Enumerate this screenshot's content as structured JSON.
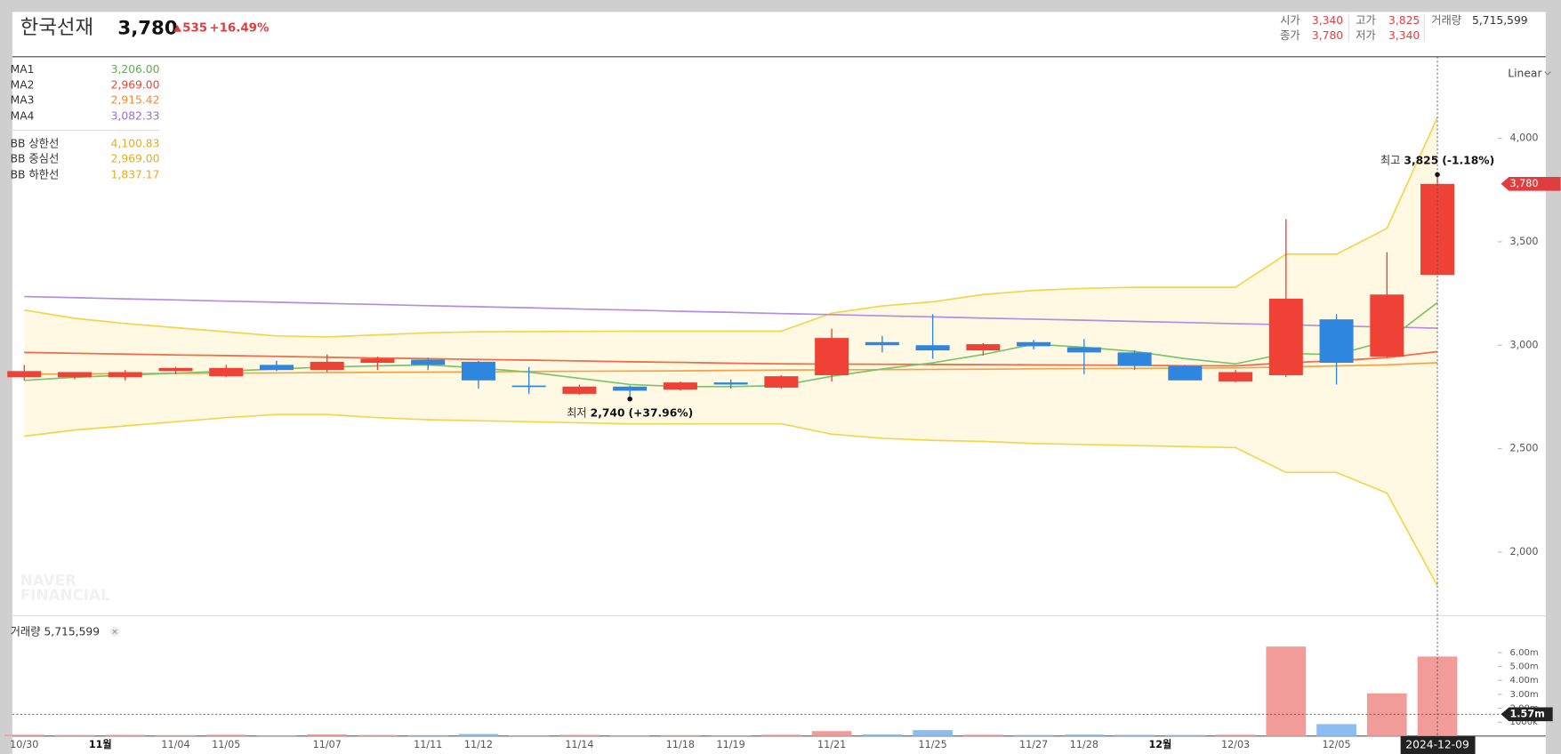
{
  "header": {
    "name": "한국선재",
    "price": "3,780",
    "change": "535",
    "change_pct": "+16.49%",
    "stats": [
      {
        "label": "시가",
        "value": "3,340"
      },
      {
        "label": "고가",
        "value": "3,825"
      },
      {
        "label": "거래량",
        "value": "5,715,599"
      },
      {
        "label": "종가",
        "value": "3,780"
      },
      {
        "label": "저가",
        "value": "3,340"
      }
    ]
  },
  "scale_mode": "Linear",
  "watermark": [
    "NAVER",
    "FINANCIAL"
  ],
  "chart_data": {
    "type": "candlestick",
    "categories": [
      "10/30",
      null,
      "11월",
      "11/04",
      "11/05",
      null,
      "11/07",
      null,
      "11/11",
      "11/12",
      null,
      "11/14",
      null,
      "11/18",
      "11/19",
      null,
      "11/21",
      null,
      "11/25",
      null,
      "11/27",
      "11/28",
      null,
      "12월",
      "12/03",
      null,
      "12/05",
      null,
      "2024-12-09"
    ],
    "open": [
      2845,
      2845,
      2845,
      2875,
      2850,
      2905,
      2880,
      2915,
      2930,
      2920,
      2805,
      2765,
      2800,
      2785,
      2820,
      2795,
      2855,
      3015,
      3000,
      2975,
      3015,
      2990,
      2965,
      2900,
      2825,
      2855,
      3125,
      2945,
      3340
    ],
    "high": [
      2905,
      2870,
      2880,
      2895,
      2905,
      2925,
      2955,
      2945,
      2940,
      2925,
      2895,
      2810,
      2805,
      2825,
      2835,
      2855,
      3080,
      3045,
      3150,
      3010,
      3025,
      3030,
      2975,
      2905,
      2880,
      3610,
      3150,
      3450,
      3825
    ],
    "low": [
      2830,
      2835,
      2830,
      2860,
      2845,
      2875,
      2870,
      2880,
      2880,
      2790,
      2765,
      2760,
      2740,
      2780,
      2790,
      2790,
      2825,
      2965,
      2935,
      2950,
      2980,
      2860,
      2880,
      2840,
      2820,
      2845,
      2810,
      2940,
      3340
    ],
    "close": [
      2875,
      2870,
      2870,
      2890,
      2890,
      2880,
      2920,
      2935,
      2905,
      2830,
      2800,
      2800,
      2780,
      2820,
      2810,
      2850,
      3035,
      3000,
      2975,
      3005,
      2995,
      2965,
      2900,
      2830,
      2870,
      3225,
      2915,
      3245,
      3780
    ],
    "up_color": "#ef4136",
    "down_color": "#2e86de",
    "ylim": [
      1697,
      4390
    ],
    "yticks": [
      {
        "value": 2000,
        "label": "2,000"
      },
      {
        "value": 2500,
        "label": "2,500"
      },
      {
        "value": 3000,
        "label": "3,000"
      },
      {
        "value": 3500,
        "label": "3,500"
      },
      {
        "value": 4000,
        "label": "4,000"
      }
    ],
    "last_price": {
      "value": 3780,
      "label": "3,780"
    },
    "lines": [
      {
        "name": "MA1",
        "value_label": "3,206.00",
        "color": "#7cc46a",
        "values": [
          2830,
          2845,
          2855,
          2865,
          2875,
          2885,
          2895,
          2900,
          2905,
          2890,
          2870,
          2840,
          2810,
          2800,
          2800,
          2805,
          2850,
          2885,
          2915,
          2955,
          3005,
          2990,
          2970,
          2935,
          2910,
          2960,
          2955,
          3020,
          3206
        ]
      },
      {
        "name": "MA2",
        "value_label": "2,969.00",
        "color": "#ef6a4f",
        "values": [
          2965,
          2961,
          2957,
          2953,
          2950,
          2946,
          2942,
          2938,
          2935,
          2931,
          2928,
          2924,
          2920,
          2917,
          2913,
          2910,
          2909,
          2908,
          2907,
          2906,
          2905,
          2904,
          2903,
          2901,
          2900,
          2915,
          2925,
          2940,
          2969
        ]
      },
      {
        "name": "MA3",
        "value_label": "2,915.42",
        "color": "#f3a24a",
        "values": [
          2860,
          2861,
          2863,
          2864,
          2865,
          2866,
          2868,
          2869,
          2870,
          2871,
          2873,
          2874,
          2875,
          2876,
          2878,
          2880,
          2881,
          2882,
          2883,
          2884,
          2886,
          2887,
          2888,
          2889,
          2890,
          2895,
          2900,
          2905,
          2915.42
        ]
      },
      {
        "name": "MA4",
        "value_label": "3,082.33",
        "color": "#b58ce0",
        "values": [
          3235,
          3230,
          3224,
          3219,
          3213,
          3208,
          3202,
          3197,
          3191,
          3186,
          3181,
          3175,
          3170,
          3164,
          3159,
          3153,
          3148,
          3142,
          3137,
          3131,
          3126,
          3121,
          3115,
          3110,
          3104,
          3099,
          3093,
          3088,
          3082.33
        ]
      },
      {
        "name": "BB 상한선",
        "value_label": "4,100.83",
        "color": "#f5d44c",
        "values": [
          3170,
          3130,
          3105,
          3085,
          3065,
          3045,
          3040,
          3050,
          3060,
          3065,
          3066,
          3067,
          3068,
          3068,
          3068,
          3068,
          3155,
          3190,
          3210,
          3245,
          3265,
          3275,
          3280,
          3280,
          3280,
          3440,
          3440,
          3565,
          4100.83
        ]
      },
      {
        "name": "BB 중심선",
        "value_label": "2,969.00",
        "color": "#f5d44c",
        "values": [
          2965,
          2961,
          2957,
          2953,
          2950,
          2946,
          2942,
          2938,
          2935,
          2931,
          2928,
          2924,
          2920,
          2917,
          2913,
          2910,
          2909,
          2908,
          2907,
          2906,
          2905,
          2904,
          2903,
          2901,
          2900,
          2915,
          2925,
          2940,
          2969
        ]
      },
      {
        "name": "BB 하한선",
        "value_label": "1,837.17",
        "color": "#f5d44c",
        "values": [
          2560,
          2590,
          2610,
          2630,
          2650,
          2665,
          2665,
          2650,
          2640,
          2635,
          2630,
          2625,
          2620,
          2620,
          2620,
          2620,
          2570,
          2550,
          2540,
          2535,
          2525,
          2520,
          2515,
          2510,
          2505,
          2385,
          2385,
          2285,
          1837.17
        ]
      }
    ],
    "legend_value_colors": [
      "#5aae48",
      "#e8453a",
      "#ef8b32",
      "#9a70cc",
      "#e3ad22",
      "#e3ad22",
      "#e3ad22"
    ],
    "annotations": [
      {
        "text": "최저",
        "value": 2740,
        "label": "2,740",
        "change": "(+37.96%)",
        "at": "low"
      },
      {
        "text": "최고",
        "value": 3825,
        "label": "3,825",
        "change": "(-1.18%)",
        "at": "high"
      }
    ],
    "volume": {
      "name": "거래량",
      "total_label": "5,715,599",
      "values": [
        0.1,
        0.08,
        0.09,
        0.07,
        0.1,
        0.06,
        0.12,
        0.08,
        0.07,
        0.15,
        0.05,
        0.09,
        0.06,
        0.07,
        0.05,
        0.1,
        0.36,
        0.12,
        0.43,
        0.1,
        0.08,
        0.11,
        0.09,
        0.08,
        0.1,
        6.43,
        0.86,
        3.07,
        5.715599
      ],
      "up_color": "#f29c9a",
      "down_color": "#8bbcf2",
      "ylim": [
        0,
        8.43
      ],
      "yticks": [
        {
          "value": 1,
          "label": "1000k"
        },
        {
          "value": 2,
          "label": "2.00m"
        },
        {
          "value": 3,
          "label": "3.00m"
        },
        {
          "value": 4,
          "label": "4.00m"
        },
        {
          "value": 5,
          "label": "5.00m"
        },
        {
          "value": 6,
          "label": "6.00m"
        }
      ],
      "crosshair": {
        "value": 1.57,
        "label": "1.57m"
      }
    }
  }
}
